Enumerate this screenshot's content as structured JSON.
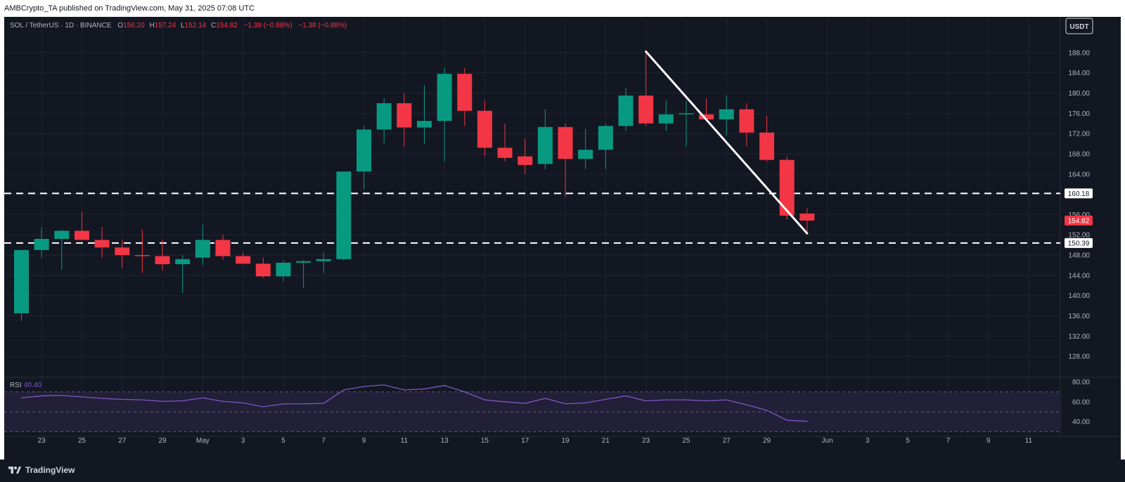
{
  "header": {
    "published": "AMBCrypto_TA published on TradingView.com, May 31, 2025 07:08 UTC"
  },
  "legend": {
    "symbol": "SOL / TetherUS · 1D · BINANCE",
    "o_label": "O",
    "o_value": "156.20",
    "h_label": "H",
    "h_value": "157.24",
    "l_label": "L",
    "l_value": "152.14",
    "c_label": "C",
    "c_value": "154.82",
    "change": "−1.38 (−0.88%)",
    "change2": "−1.38 (−0.88%)"
  },
  "currency_button": "USDT",
  "footer": {
    "logo_text": "TradingView"
  },
  "colors": {
    "background": "#131722",
    "up": "#089981",
    "down": "#f23645",
    "grid": "#1f2433",
    "text": "#b2b5be",
    "rsi_line": "#7e57c2",
    "rsi_band": "#221f38"
  },
  "chart_data": [
    {
      "type": "candlestick",
      "title": "SOL / TetherUS · 1D · BINANCE",
      "ylim": [
        124,
        192
      ],
      "yticks": [
        "188.00",
        "184.00",
        "180.00",
        "176.00",
        "172.00",
        "168.00",
        "164.00",
        "160.00",
        "156.00",
        "152.00",
        "148.00",
        "144.00",
        "140.00",
        "136.00",
        "132.00",
        "128.00"
      ],
      "xticks": [
        {
          "day": 23,
          "label": "23"
        },
        {
          "day": 25,
          "label": "25"
        },
        {
          "day": 27,
          "label": "27"
        },
        {
          "day": 29,
          "label": "29"
        },
        {
          "day": 31,
          "label": "May"
        },
        {
          "day": 33,
          "label": "3"
        },
        {
          "day": 35,
          "label": "5"
        },
        {
          "day": 37,
          "label": "7"
        },
        {
          "day": 39,
          "label": "9"
        },
        {
          "day": 41,
          "label": "11"
        },
        {
          "day": 43,
          "label": "13"
        },
        {
          "day": 45,
          "label": "15"
        },
        {
          "day": 47,
          "label": "17"
        },
        {
          "day": 49,
          "label": "19"
        },
        {
          "day": 51,
          "label": "21"
        },
        {
          "day": 53,
          "label": "23"
        },
        {
          "day": 55,
          "label": "25"
        },
        {
          "day": 57,
          "label": "27"
        },
        {
          "day": 59,
          "label": "29"
        },
        {
          "day": 62,
          "label": "Jun"
        },
        {
          "day": 64,
          "label": "3"
        },
        {
          "day": 66,
          "label": "5"
        },
        {
          "day": 68,
          "label": "7"
        },
        {
          "day": 70,
          "label": "9"
        },
        {
          "day": 72,
          "label": "11"
        }
      ],
      "candles": [
        {
          "day": 22,
          "o": 136.5,
          "h": 149.0,
          "l": 135.0,
          "c": 149.0
        },
        {
          "day": 23,
          "o": 149.0,
          "h": 153.5,
          "l": 147.5,
          "c": 151.2
        },
        {
          "day": 24,
          "o": 151.2,
          "h": 153.0,
          "l": 145.0,
          "c": 152.8
        },
        {
          "day": 25,
          "o": 152.8,
          "h": 156.5,
          "l": 151.0,
          "c": 151.0
        },
        {
          "day": 26,
          "o": 151.0,
          "h": 153.5,
          "l": 147.5,
          "c": 149.5
        },
        {
          "day": 27,
          "o": 149.5,
          "h": 151.0,
          "l": 145.5,
          "c": 148.0
        },
        {
          "day": 28,
          "o": 148.0,
          "h": 153.0,
          "l": 144.5,
          "c": 147.8
        },
        {
          "day": 29,
          "o": 147.8,
          "h": 151.0,
          "l": 145.0,
          "c": 146.2
        },
        {
          "day": 30,
          "o": 146.2,
          "h": 148.0,
          "l": 140.5,
          "c": 147.2
        },
        {
          "day": 31,
          "o": 147.5,
          "h": 154.0,
          "l": 146.0,
          "c": 151.0
        },
        {
          "day": 32,
          "o": 151.0,
          "h": 152.0,
          "l": 147.0,
          "c": 147.8
        },
        {
          "day": 33,
          "o": 147.8,
          "h": 148.5,
          "l": 146.2,
          "c": 146.3
        },
        {
          "day": 34,
          "o": 146.3,
          "h": 147.5,
          "l": 143.5,
          "c": 143.8
        },
        {
          "day": 35,
          "o": 143.8,
          "h": 147.0,
          "l": 142.8,
          "c": 146.5
        },
        {
          "day": 36,
          "o": 146.5,
          "h": 147.0,
          "l": 141.5,
          "c": 146.8
        },
        {
          "day": 37,
          "o": 146.8,
          "h": 148.5,
          "l": 144.5,
          "c": 147.2
        },
        {
          "day": 38,
          "o": 147.2,
          "h": 164.5,
          "l": 147.0,
          "c": 164.5
        },
        {
          "day": 39,
          "o": 164.5,
          "h": 173.5,
          "l": 161.0,
          "c": 172.8
        },
        {
          "day": 40,
          "o": 172.8,
          "h": 179.0,
          "l": 170.0,
          "c": 178.0
        },
        {
          "day": 41,
          "o": 178.0,
          "h": 180.0,
          "l": 169.5,
          "c": 173.2
        },
        {
          "day": 42,
          "o": 173.2,
          "h": 181.5,
          "l": 170.0,
          "c": 174.5
        },
        {
          "day": 43,
          "o": 174.5,
          "h": 185.0,
          "l": 166.5,
          "c": 183.8
        },
        {
          "day": 44,
          "o": 183.8,
          "h": 185.0,
          "l": 173.5,
          "c": 176.5
        },
        {
          "day": 45,
          "o": 176.5,
          "h": 178.5,
          "l": 167.5,
          "c": 169.2
        },
        {
          "day": 46,
          "o": 169.2,
          "h": 174.0,
          "l": 166.5,
          "c": 167.2
        },
        {
          "day": 47,
          "o": 167.5,
          "h": 171.0,
          "l": 164.0,
          "c": 165.8
        },
        {
          "day": 48,
          "o": 166.0,
          "h": 176.8,
          "l": 165.0,
          "c": 173.3
        },
        {
          "day": 49,
          "o": 173.3,
          "h": 174.0,
          "l": 159.5,
          "c": 167.0
        },
        {
          "day": 50,
          "o": 167.0,
          "h": 173.0,
          "l": 165.0,
          "c": 168.8
        },
        {
          "day": 51,
          "o": 168.8,
          "h": 174.0,
          "l": 165.0,
          "c": 173.5
        },
        {
          "day": 52,
          "o": 173.5,
          "h": 181.0,
          "l": 172.5,
          "c": 179.5
        },
        {
          "day": 53,
          "o": 179.5,
          "h": 188.0,
          "l": 173.5,
          "c": 174.0
        },
        {
          "day": 54,
          "o": 174.0,
          "h": 178.5,
          "l": 172.5,
          "c": 175.8
        },
        {
          "day": 55,
          "o": 175.8,
          "h": 178.5,
          "l": 169.5,
          "c": 176.0
        },
        {
          "day": 56,
          "o": 175.8,
          "h": 179.0,
          "l": 174.5,
          "c": 174.8
        },
        {
          "day": 57,
          "o": 174.8,
          "h": 179.5,
          "l": 171.5,
          "c": 176.8
        },
        {
          "day": 58,
          "o": 176.8,
          "h": 178.0,
          "l": 169.5,
          "c": 172.2
        },
        {
          "day": 59,
          "o": 172.2,
          "h": 175.5,
          "l": 166.5,
          "c": 166.8
        },
        {
          "day": 60,
          "o": 166.8,
          "h": 167.5,
          "l": 155.0,
          "c": 155.8
        },
        {
          "day": 61,
          "o": 156.2,
          "h": 157.24,
          "l": 152.14,
          "c": 154.82
        }
      ],
      "horizontal_lines": [
        {
          "value": 160.18,
          "label": "160.18",
          "style": "dashed"
        },
        {
          "value": 150.39,
          "label": "150.39",
          "style": "dashed"
        }
      ],
      "trendline": {
        "from": {
          "day": 53,
          "value": 188.2
        },
        "to": {
          "day": 61,
          "value": 152.3
        }
      },
      "last_price": {
        "value": 154.82,
        "label": "154.82"
      }
    },
    {
      "type": "line",
      "title": "RSI",
      "label": "RSI",
      "value_label": "40.40",
      "ylim": [
        26,
        84
      ],
      "yticks": [
        "80.00",
        "60.00",
        "40.00"
      ],
      "bands": {
        "upper": 70,
        "middle": 50,
        "lower": 30
      },
      "series": [
        {
          "values": [
            {
              "day": 22,
              "value": 64
            },
            {
              "day": 23,
              "value": 66
            },
            {
              "day": 24,
              "value": 66.5
            },
            {
              "day": 25,
              "value": 65
            },
            {
              "day": 26,
              "value": 63.5
            },
            {
              "day": 27,
              "value": 62.5
            },
            {
              "day": 28,
              "value": 62
            },
            {
              "day": 29,
              "value": 60.5
            },
            {
              "day": 30,
              "value": 61
            },
            {
              "day": 31,
              "value": 64
            },
            {
              "day": 32,
              "value": 60.5
            },
            {
              "day": 33,
              "value": 59
            },
            {
              "day": 34,
              "value": 55
            },
            {
              "day": 35,
              "value": 58
            },
            {
              "day": 36,
              "value": 58
            },
            {
              "day": 37,
              "value": 58.5
            },
            {
              "day": 38,
              "value": 72
            },
            {
              "day": 39,
              "value": 75.5
            },
            {
              "day": 40,
              "value": 77
            },
            {
              "day": 41,
              "value": 72
            },
            {
              "day": 42,
              "value": 73
            },
            {
              "day": 43,
              "value": 76.5
            },
            {
              "day": 44,
              "value": 70
            },
            {
              "day": 45,
              "value": 62
            },
            {
              "day": 46,
              "value": 60
            },
            {
              "day": 47,
              "value": 58.5
            },
            {
              "day": 48,
              "value": 63.5
            },
            {
              "day": 49,
              "value": 58
            },
            {
              "day": 50,
              "value": 59
            },
            {
              "day": 51,
              "value": 62.5
            },
            {
              "day": 52,
              "value": 66
            },
            {
              "day": 53,
              "value": 61
            },
            {
              "day": 54,
              "value": 62
            },
            {
              "day": 55,
              "value": 62
            },
            {
              "day": 56,
              "value": 61
            },
            {
              "day": 57,
              "value": 62
            },
            {
              "day": 58,
              "value": 57
            },
            {
              "day": 59,
              "value": 51.5
            },
            {
              "day": 60,
              "value": 41.5
            },
            {
              "day": 61,
              "value": 40.4
            }
          ]
        }
      ]
    }
  ]
}
